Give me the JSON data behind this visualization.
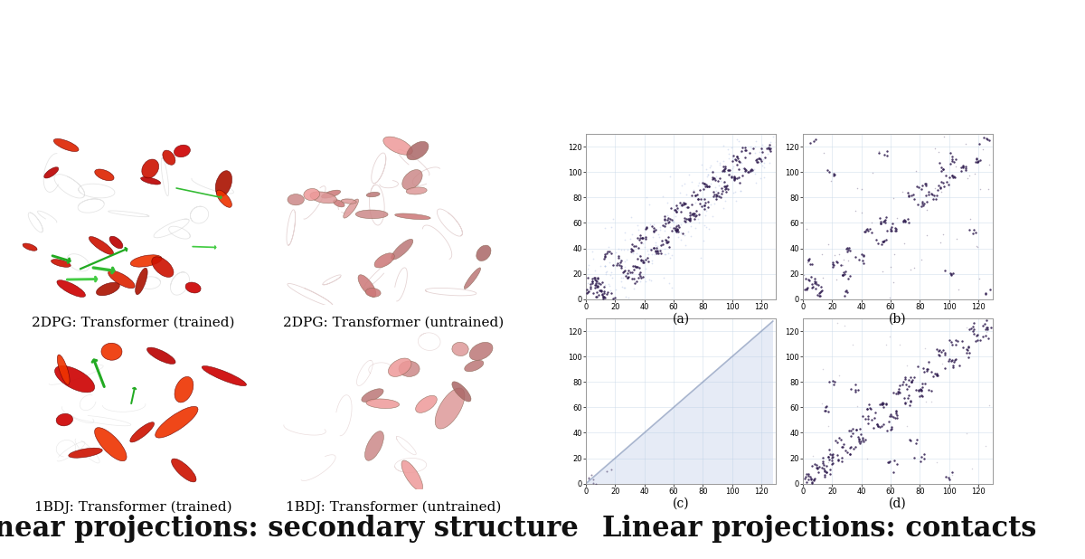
{
  "title_left": "Linear projections: secondary structure",
  "title_right": "Linear projections: contacts",
  "caption_top_left": "2DPG: Transformer (trained)",
  "caption_top_right": "2DPG: Transformer (untrained)",
  "caption_bot_left": "1BDJ: Transformer (trained)",
  "caption_bot_right": "1BDJ: Transformer (untrained)",
  "subplot_labels": [
    "(a)",
    "(b)",
    "(c)",
    "(d)"
  ],
  "axis_max": 130,
  "axis_ticks": [
    0,
    20,
    40,
    60,
    80,
    100,
    120
  ],
  "bg_color": "#ffffff",
  "dot_color_dark": "#2d1a4d",
  "dot_color_light": "#b8c8e8",
  "title_fontsize": 22,
  "caption_fontsize": 11,
  "label_fontsize": 10
}
